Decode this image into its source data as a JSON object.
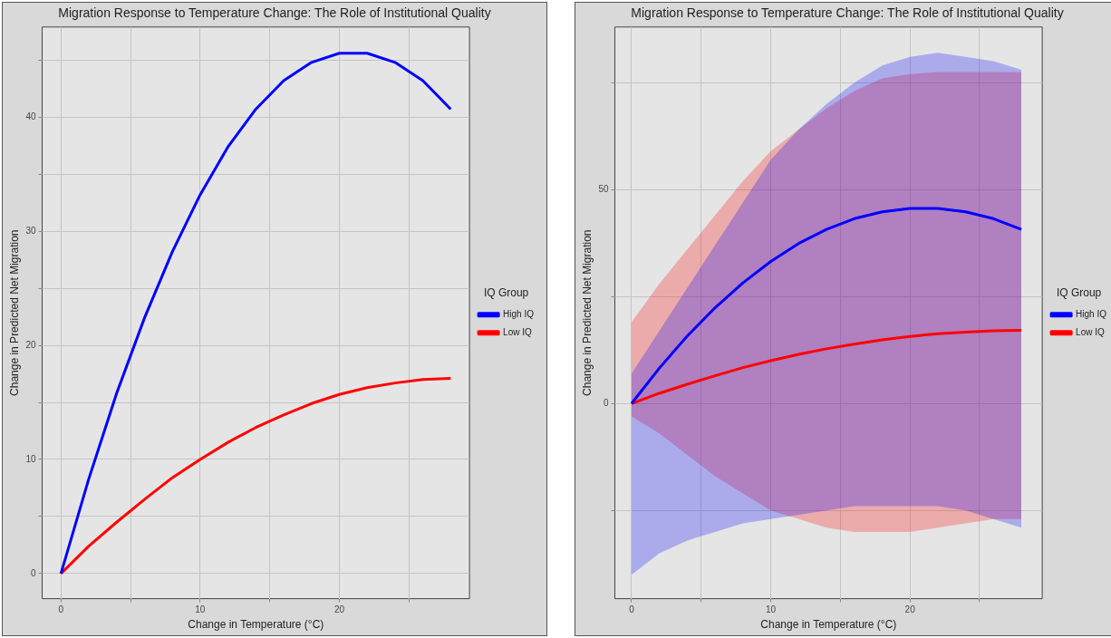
{
  "chart_data": [
    {
      "type": "line",
      "title": "Migration Response to Temperature Change: The Role of Institutional Quality",
      "xlabel": "Change in Temperature (°C)",
      "ylabel": "Change in Predicted Net Migration",
      "legend_title": "IQ Group",
      "legend": "right",
      "grid": true,
      "xlim": [
        -1.35,
        29.35
      ],
      "xticks": [
        0,
        {
          "value": 5,
          "label": null
        },
        10,
        {
          "value": 15,
          "label": null
        },
        20,
        {
          "value": 25,
          "label": null
        }
      ],
      "ylim": [
        -2.2,
        47.9
      ],
      "yticks": [
        0,
        {
          "value": 5,
          "label": null
        },
        10,
        {
          "value": 15,
          "label": null
        },
        20,
        {
          "value": 25,
          "label": null
        },
        30,
        {
          "value": 35,
          "label": null
        },
        40,
        {
          "value": 45,
          "label": null
        }
      ],
      "x": [
        0,
        2,
        4,
        6,
        8,
        10,
        12,
        14,
        16,
        18,
        20,
        22,
        24,
        26,
        28
      ],
      "series": [
        {
          "name": "High IQ",
          "color": "#0000ff",
          "values": [
            0,
            8.3,
            15.8,
            22.4,
            28.2,
            33.2,
            37.4,
            40.7,
            43.2,
            44.8,
            45.6,
            45.6,
            44.8,
            43.2,
            40.7
          ]
        },
        {
          "name": "Low IQ",
          "color": "#ff0000",
          "values": [
            0,
            2.4,
            4.5,
            6.5,
            8.4,
            10.0,
            11.5,
            12.8,
            13.9,
            14.9,
            15.7,
            16.3,
            16.7,
            17.0,
            17.1
          ]
        }
      ]
    },
    {
      "type": "line",
      "title": "Migration Response to Temperature Change: The Role of Institutional Quality",
      "xlabel": "Change in Temperature (°C)",
      "ylabel": "Change in Predicted Net Migration",
      "legend_title": "IQ Group",
      "legend": "right",
      "grid": true,
      "xlim": [
        -1.2,
        29.5
      ],
      "xticks": [
        0,
        {
          "value": 5,
          "label": null
        },
        10,
        {
          "value": 15,
          "label": null
        },
        20,
        {
          "value": 25,
          "label": null
        }
      ],
      "ylim": [
        -45.6,
        88
      ],
      "yticks": [
        {
          "value": -25,
          "label": null
        },
        0,
        {
          "value": 25,
          "label": null
        },
        50,
        {
          "value": 75,
          "label": null
        }
      ],
      "x": [
        0,
        2,
        4,
        6,
        8,
        10,
        12,
        14,
        16,
        18,
        20,
        22,
        24,
        26,
        28
      ],
      "series": [
        {
          "name": "High IQ",
          "color": "#0000ff",
          "values": [
            0,
            8.3,
            15.8,
            22.4,
            28.2,
            33.2,
            37.4,
            40.7,
            43.2,
            44.8,
            45.6,
            45.6,
            44.8,
            43.2,
            40.7
          ],
          "lower": [
            -40,
            -35,
            -32,
            -30,
            -28,
            -27,
            -26,
            -25,
            -24,
            -24,
            -24,
            -24,
            -25,
            -27,
            -29
          ],
          "upper": [
            7,
            17,
            27,
            37,
            47,
            57,
            64,
            70,
            75,
            79,
            81,
            82,
            81,
            80,
            78
          ]
        },
        {
          "name": "Low IQ",
          "color": "#ff0000",
          "values": [
            0,
            2.4,
            4.5,
            6.5,
            8.4,
            10.0,
            11.5,
            12.8,
            13.9,
            14.9,
            15.7,
            16.3,
            16.7,
            17.0,
            17.1
          ],
          "lower": [
            -3,
            -7,
            -12,
            -17,
            -21,
            -25,
            -27,
            -29,
            -30,
            -30,
            -30,
            -29,
            -28,
            -27,
            -27
          ],
          "upper": [
            19,
            28,
            36,
            44,
            52,
            59,
            64,
            69,
            73,
            76,
            77,
            77.5,
            77.5,
            77.5,
            77.5
          ]
        }
      ]
    }
  ]
}
